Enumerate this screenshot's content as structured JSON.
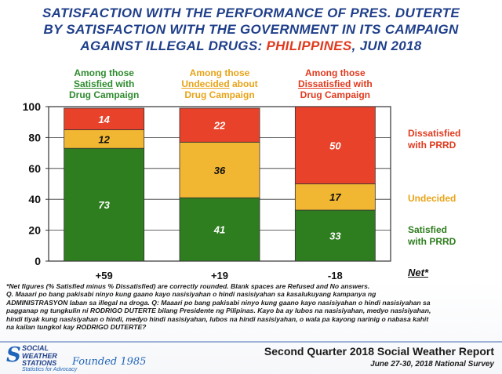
{
  "chart_data": {
    "type": "bar",
    "stacked": true,
    "title_line1": "SATISFACTION WITH THE PERFORMANCE OF PRES. DUTERTE",
    "title_line2": "BY SATISFACTION WITH THE GOVERNMENT IN ITS CAMPAIGN",
    "title_line3_part1": "AGAINST ILLEGAL DRUGS: ",
    "title_line3_highlight": "PHILIPPINES",
    "title_line3_part2": ", JUN 2018",
    "categories": [
      {
        "pre": "Among those",
        "key": "Satisfied",
        "post": "with",
        "last": "Drug Campaign",
        "color": "#2e8b2e"
      },
      {
        "pre": "Among those",
        "key": "Undecided",
        "post": "about",
        "last": "Drug Campaign",
        "color": "#e8a317"
      },
      {
        "pre": "Among those",
        "key": "Dissatisfied",
        "post": "with",
        "last": "Drug Campaign",
        "color": "#e03a1e"
      }
    ],
    "series": [
      {
        "name_line1": "Satisfied",
        "name_line2": "with PRRD",
        "color": "#2e7d1e",
        "values": [
          73,
          41,
          33
        ]
      },
      {
        "name": "Undecided",
        "color": "#f2b732",
        "values": [
          12,
          36,
          17
        ]
      },
      {
        "name_line1": "Dissatisfied",
        "name_line2": "with PRRD",
        "color": "#e8432a",
        "values": [
          14,
          22,
          50
        ]
      }
    ],
    "series_label_colors": [
      "#2e7d1e",
      "#e8a317",
      "#e03a1e"
    ],
    "value_label_colors": [
      "#ffffff",
      "#111111",
      "#ffffff"
    ],
    "net_values": [
      "+59",
      "+19",
      "-18"
    ],
    "net_label": "Net*",
    "y_ticks": [
      "0",
      "20",
      "40",
      "60",
      "80",
      "100"
    ],
    "ylim": [
      0,
      100
    ],
    "grid": true
  },
  "notes": {
    "line1": "*Net figures (% Satisfied minus % Dissatisfied) are correctly rounded. Blank spaces are Refused and No answers.",
    "line2": "Q. Maaari po bang pakisabi ninyo kung gaano kayo nasisiyahan o hindi nasisiyahan sa kasalukuyang kampanya ng",
    "line3": "ADMINISTRASYON laban sa illegal na droga. Q: Maaari po bang pakisabi ninyo kung gaano kayo nasisiyahan o hindi nasisiyahan sa",
    "line4": "pagganap ng tungkulin ni RODRIGO DUTERTE bilang Presidente ng Pilipinas. Kayo ba ay lubos na nasisiyahan, medyo nasisiyahan,",
    "line5": "hindi tiyak kung nasisiyahan o hindi, medyo hindi nasisiyahan, lubos na hindi nasisiyahan, o wala pa kayong narinig o nabasa kahit",
    "line6": "na kailan tungkol kay RODRIGO DUTERTE?"
  },
  "footer": {
    "logo_line1": "SOCIAL",
    "logo_line2": "WEATHER",
    "logo_line3": "STATIONS",
    "founded": "Founded 1985",
    "tagline": "Statistics for Advocacy",
    "report": "Second Quarter 2018 Social Weather Report",
    "survey": "June 27-30, 2018 National Survey"
  }
}
